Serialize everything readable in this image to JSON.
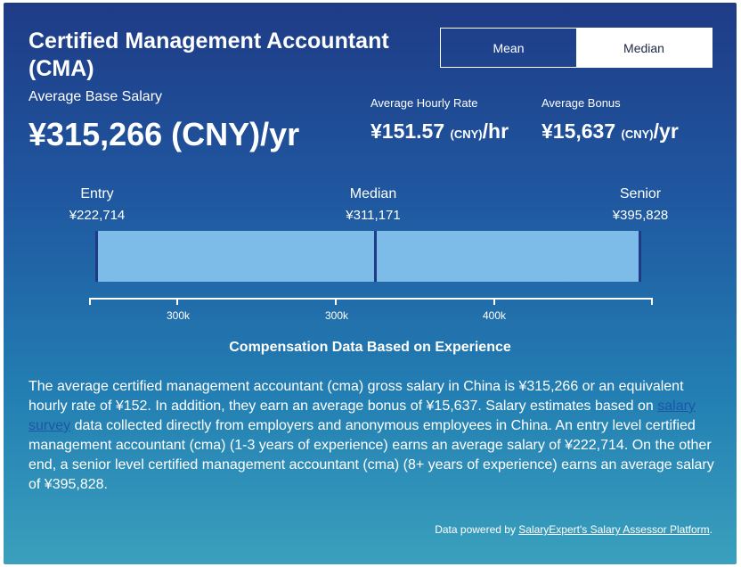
{
  "header": {
    "title": "Certified Management Accountant (CMA)",
    "toggle": {
      "mean_label": "Mean",
      "median_label": "Median",
      "selected": "Median"
    }
  },
  "salary": {
    "avg_label": "Average Base Salary",
    "avg_value": "¥315,266 (CNY)/yr",
    "hourly_label": "Average Hourly Rate",
    "hourly_amount": "¥151.57",
    "hourly_currency": "(CNY)",
    "hourly_suffix": "/hr",
    "bonus_label": "Average Bonus",
    "bonus_amount": "¥15,637",
    "bonus_currency": "(CNY)",
    "bonus_suffix": "/yr"
  },
  "chart_data": {
    "type": "range",
    "levels": [
      {
        "label": "Entry",
        "value": 222714,
        "display": "¥222,714"
      },
      {
        "label": "Median",
        "value": 311171,
        "display": "¥311,171"
      },
      {
        "label": "Senior",
        "value": 395828,
        "display": "¥395,828"
      }
    ],
    "tick_labels": [
      "300k",
      "300k",
      "400k"
    ],
    "caption": "Compensation Data Based on Experience",
    "colors": {
      "bar": "#7dbbe8",
      "edges": "#1f3b86"
    }
  },
  "description": {
    "p1": "The average certified management accountant (cma) gross salary in China is ¥315,266 or an equivalent hourly rate of ¥152. In addition, they earn an average bonus of ¥15,637. Salary estimates based on ",
    "link": "salary survey",
    "p2": " data collected directly from employers and anonymous employees in China. An entry level certified management accountant (cma) (1-3 years of experience) earns an average salary of ¥222,714. On the other end, a senior level certified management accountant (cma) (8+ years of experience) earns an average salary of ¥395,828."
  },
  "footer": {
    "prefix": "Data powered by ",
    "link": "SalaryExpert's Salary Assessor Platform",
    "suffix": "."
  },
  "colors": {
    "bg_top": "#1f3b86",
    "bg_bottom": "#3aa0bd",
    "link": "#1c56a6"
  }
}
